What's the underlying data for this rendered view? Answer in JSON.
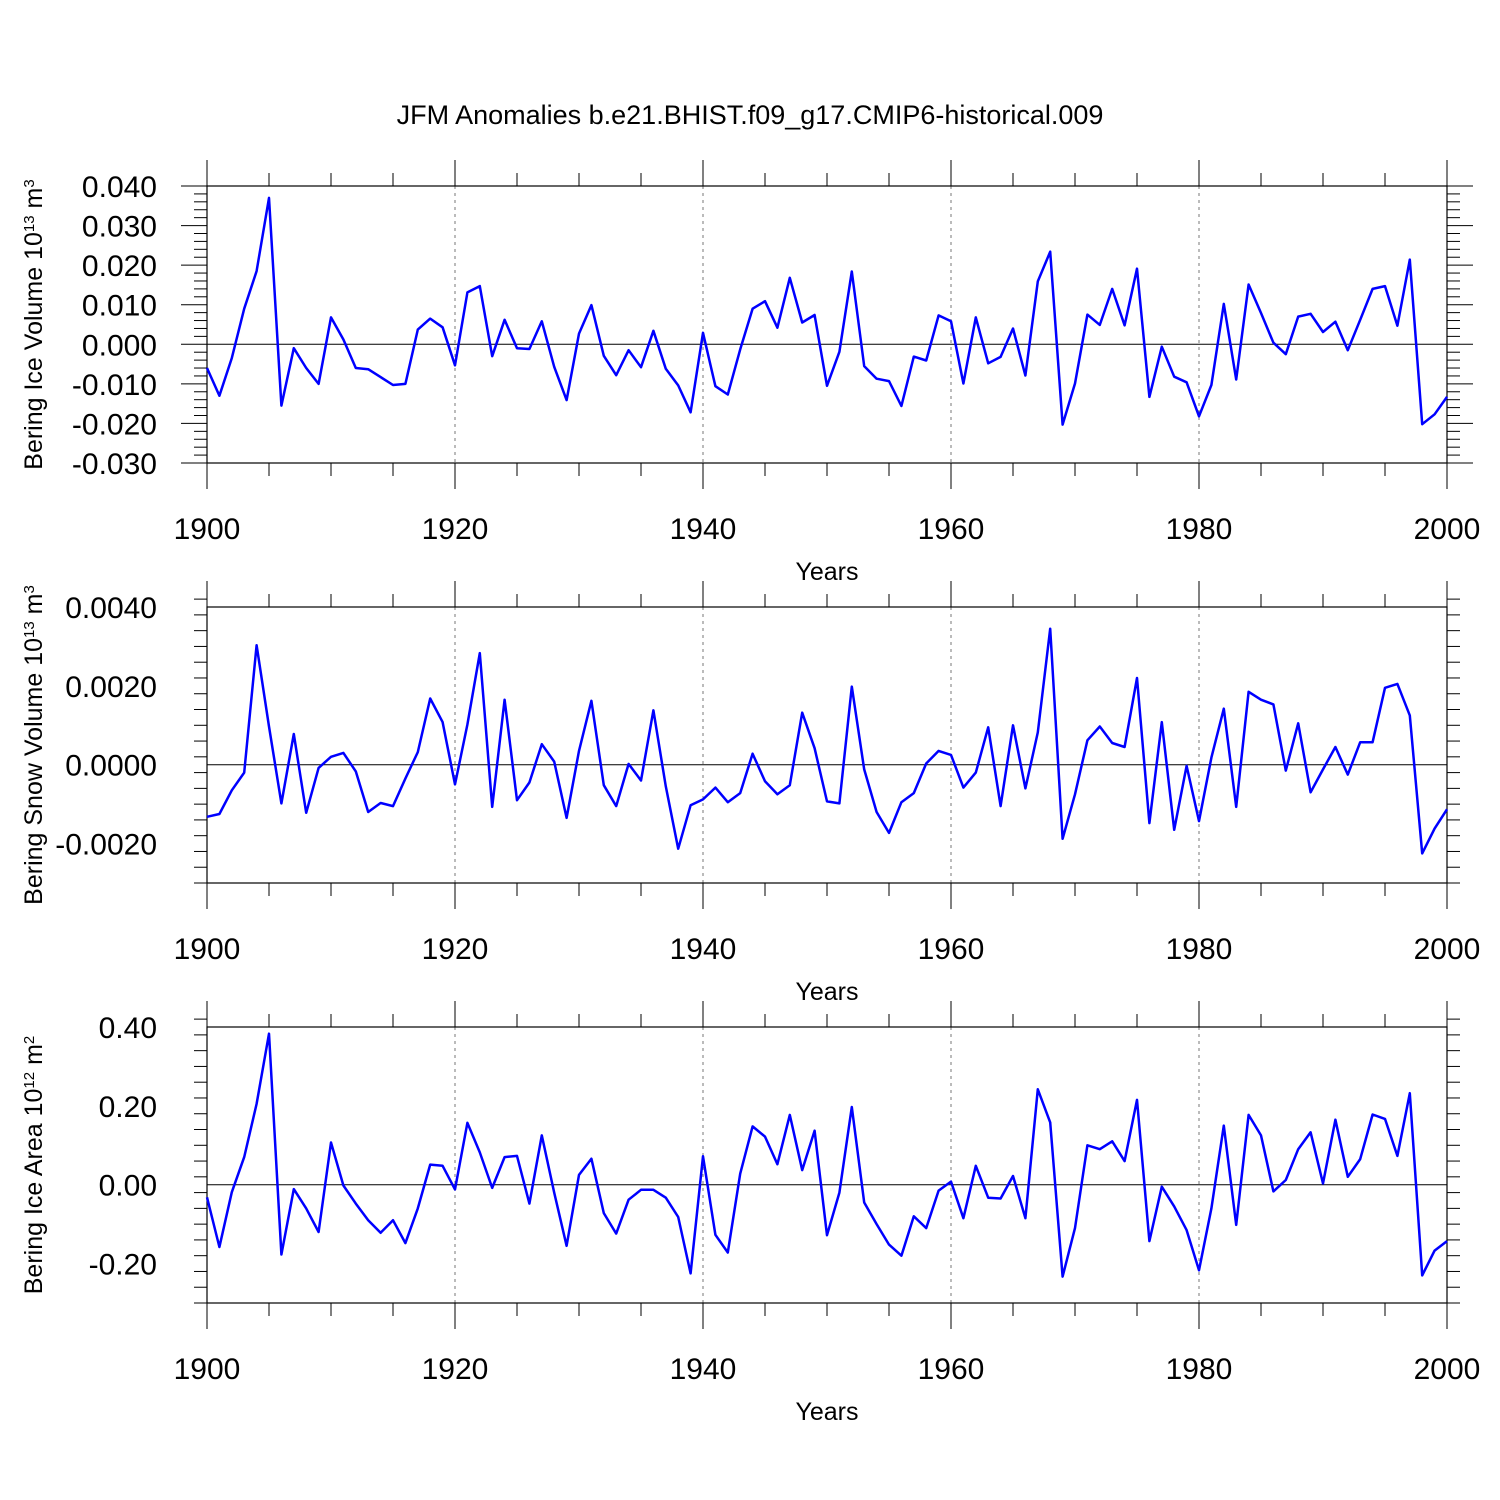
{
  "figure": {
    "title": "JFM Anomalies b.e21.BHIST.f09_g17.CMIP6-historical.009",
    "line_color": "#0000ff"
  },
  "chart_data": [
    {
      "type": "line",
      "ylabel_base": "Bering Ice Volume 10",
      "ylabel_exp": "13",
      "ylabel_unit": " m",
      "ylabel_unit_exp": "3",
      "xlabel": "Years",
      "xlim": [
        1900,
        2000
      ],
      "ylim": [
        -0.03,
        0.04
      ],
      "y_ticks": [
        0.04,
        0.03,
        0.02,
        0.01,
        0.0,
        -0.01,
        -0.02,
        -0.03
      ],
      "y_tick_labels": [
        "0.040",
        "0.030",
        "0.020",
        "0.010",
        "0.000",
        "-0.010",
        "-0.020",
        "-0.030"
      ],
      "x_ticks": [
        1900,
        1920,
        1940,
        1960,
        1980,
        2000
      ],
      "x_tick_labels": [
        "1900",
        "1920",
        "1940",
        "1960",
        "1980",
        "2000"
      ],
      "grid_x": [
        1920,
        1940,
        1960,
        1980
      ],
      "x": [
        1900,
        1901,
        1902,
        1903,
        1904,
        1905,
        1906,
        1907,
        1908,
        1909,
        1910,
        1911,
        1912,
        1913,
        1914,
        1915,
        1916,
        1917,
        1918,
        1919,
        1920,
        1921,
        1922,
        1923,
        1924,
        1925,
        1926,
        1927,
        1928,
        1929,
        1930,
        1931,
        1932,
        1933,
        1934,
        1935,
        1936,
        1937,
        1938,
        1939,
        1940,
        1941,
        1942,
        1943,
        1944,
        1945,
        1946,
        1947,
        1948,
        1949,
        1950,
        1951,
        1952,
        1953,
        1954,
        1955,
        1956,
        1957,
        1958,
        1959,
        1960,
        1961,
        1962,
        1963,
        1964,
        1965,
        1966,
        1967,
        1968,
        1969,
        1970,
        1971,
        1972,
        1973,
        1974,
        1975,
        1976,
        1977,
        1978,
        1979,
        1980,
        1981,
        1982,
        1983,
        1984,
        1985,
        1986,
        1987,
        1988,
        1989,
        1990,
        1991,
        1992,
        1993,
        1994,
        1995,
        1996,
        1997,
        1998,
        1999,
        2000
      ],
      "y": [
        -0.006,
        -0.013,
        -0.0035,
        0.009,
        0.0185,
        0.037,
        -0.0155,
        -0.001,
        -0.006,
        -0.01,
        0.0068,
        0.0012,
        -0.006,
        -0.0063,
        -0.0083,
        -0.0103,
        -0.01,
        0.0037,
        0.0065,
        0.0043,
        -0.0053,
        0.0131,
        0.0147,
        -0.003,
        0.0062,
        -0.001,
        -0.0012,
        0.0058,
        -0.0057,
        -0.0141,
        0.0027,
        0.0099,
        -0.0029,
        -0.0078,
        -0.0015,
        -0.0058,
        0.0034,
        -0.0062,
        -0.0104,
        -0.0172,
        0.0029,
        -0.0106,
        -0.0127,
        -0.0013,
        0.009,
        0.0109,
        0.0042,
        0.0168,
        0.0055,
        0.0074,
        -0.0105,
        -0.0019,
        0.0184,
        -0.0055,
        -0.0087,
        -0.0093,
        -0.0156,
        -0.0031,
        -0.0041,
        0.0073,
        0.0058,
        -0.0099,
        0.0068,
        -0.0048,
        -0.0032,
        0.004,
        -0.0079,
        0.0159,
        0.0234,
        -0.0203,
        -0.0099,
        0.0075,
        0.0049,
        0.014,
        0.0048,
        0.0191,
        -0.0133,
        -0.0006,
        -0.0082,
        -0.0096,
        -0.0182,
        -0.0103,
        0.0102,
        -0.0089,
        0.0151,
        0.0079,
        0.0004,
        -0.0025,
        0.007,
        0.0077,
        0.0031,
        0.0057,
        -0.0015,
        0.0062,
        0.014,
        0.0147,
        0.0047,
        0.0214,
        -0.0202,
        -0.0177,
        -0.0133
      ]
    },
    {
      "type": "line",
      "ylabel_base": "Bering Snow Volume 10",
      "ylabel_exp": "13",
      "ylabel_unit": " m",
      "ylabel_unit_exp": "3",
      "xlabel": "Years",
      "xlim": [
        1900,
        2000
      ],
      "ylim": [
        -0.003,
        0.004
      ],
      "y_ticks": [
        0.004,
        0.002,
        0.0,
        -0.002
      ],
      "y_tick_labels": [
        "0.0040",
        "0.0020",
        "0.0000",
        "-0.0020"
      ],
      "x_ticks": [
        1900,
        1920,
        1940,
        1960,
        1980,
        2000
      ],
      "x_tick_labels": [
        "1900",
        "1920",
        "1940",
        "1960",
        "1980",
        "2000"
      ],
      "grid_x": [
        1920,
        1940,
        1960,
        1980
      ],
      "x": [
        1900,
        1901,
        1902,
        1903,
        1904,
        1905,
        1906,
        1907,
        1908,
        1909,
        1910,
        1911,
        1912,
        1913,
        1914,
        1915,
        1916,
        1917,
        1918,
        1919,
        1920,
        1921,
        1922,
        1923,
        1924,
        1925,
        1926,
        1927,
        1928,
        1929,
        1930,
        1931,
        1932,
        1933,
        1934,
        1935,
        1936,
        1937,
        1938,
        1939,
        1940,
        1941,
        1942,
        1943,
        1944,
        1945,
        1946,
        1947,
        1948,
        1949,
        1950,
        1951,
        1952,
        1953,
        1954,
        1955,
        1956,
        1957,
        1958,
        1959,
        1960,
        1961,
        1962,
        1963,
        1964,
        1965,
        1966,
        1967,
        1968,
        1969,
        1970,
        1971,
        1972,
        1973,
        1974,
        1975,
        1976,
        1977,
        1978,
        1979,
        1980,
        1981,
        1982,
        1983,
        1984,
        1985,
        1986,
        1987,
        1988,
        1989,
        1990,
        1991,
        1992,
        1993,
        1994,
        1995,
        1996,
        1997,
        1998,
        1999,
        2000
      ],
      "y": [
        -0.00132,
        -0.00125,
        -0.00065,
        -0.0002,
        0.00303,
        0.00097,
        -0.00098,
        0.00078,
        -0.00122,
        -8e-05,
        0.0002,
        0.0003,
        -0.00017,
        -0.0012,
        -0.00097,
        -0.00105,
        -0.00035,
        0.00032,
        0.00168,
        0.00108,
        -0.0005,
        0.00102,
        0.00283,
        -0.00107,
        0.00165,
        -0.0009,
        -0.00045,
        0.00052,
        8e-05,
        -0.00135,
        0.00035,
        0.00162,
        -0.00052,
        -0.00105,
        2e-05,
        -0.0004,
        0.00138,
        -0.00055,
        -0.00213,
        -0.00103,
        -0.00088,
        -0.00058,
        -0.00095,
        -0.00072,
        0.00028,
        -0.00042,
        -0.00075,
        -0.00052,
        0.00132,
        0.00042,
        -0.00093,
        -0.00098,
        0.00198,
        -0.00012,
        -0.0012,
        -0.00173,
        -0.00095,
        -0.00072,
        3e-05,
        0.00035,
        0.00025,
        -0.00058,
        -0.0002,
        0.00095,
        -0.00105,
        0.001,
        -0.0006,
        0.00082,
        0.00345,
        -0.00188,
        -0.00075,
        0.00062,
        0.00097,
        0.00055,
        0.00045,
        0.0022,
        -0.00148,
        0.00108,
        -0.00165,
        -3e-05,
        -0.00143,
        0.00018,
        0.00142,
        -0.00107,
        0.00185,
        0.00165,
        0.00153,
        -0.00015,
        0.00105,
        -0.0007,
        -0.00012,
        0.00045,
        -0.00025,
        0.00057,
        0.00057,
        0.00195,
        0.00205,
        0.00125,
        -0.00225,
        -0.00162,
        -0.00113
      ]
    },
    {
      "type": "line",
      "ylabel_base": "Bering Ice Area 10",
      "ylabel_exp": "12",
      "ylabel_unit": " m",
      "ylabel_unit_exp": "2",
      "xlabel": "Years",
      "xlim": [
        1900,
        2000
      ],
      "ylim": [
        -0.3,
        0.4
      ],
      "y_ticks": [
        0.4,
        0.2,
        0.0,
        -0.2
      ],
      "y_tick_labels": [
        "0.40",
        "0.20",
        "0.00",
        "-0.20"
      ],
      "x_ticks": [
        1900,
        1920,
        1940,
        1960,
        1980,
        2000
      ],
      "x_tick_labels": [
        "1900",
        "1920",
        "1940",
        "1960",
        "1980",
        "2000"
      ],
      "grid_x": [
        1920,
        1940,
        1960,
        1980
      ],
      "x": [
        1900,
        1901,
        1902,
        1903,
        1904,
        1905,
        1906,
        1907,
        1908,
        1909,
        1910,
        1911,
        1912,
        1913,
        1914,
        1915,
        1916,
        1917,
        1918,
        1919,
        1920,
        1921,
        1922,
        1923,
        1924,
        1925,
        1926,
        1927,
        1928,
        1929,
        1930,
        1931,
        1932,
        1933,
        1934,
        1935,
        1936,
        1937,
        1938,
        1939,
        1940,
        1941,
        1942,
        1943,
        1944,
        1945,
        1946,
        1947,
        1948,
        1949,
        1950,
        1951,
        1952,
        1953,
        1954,
        1955,
        1956,
        1957,
        1958,
        1959,
        1960,
        1961,
        1962,
        1963,
        1964,
        1965,
        1966,
        1967,
        1968,
        1969,
        1970,
        1971,
        1972,
        1973,
        1974,
        1975,
        1976,
        1977,
        1978,
        1979,
        1980,
        1981,
        1982,
        1983,
        1984,
        1985,
        1986,
        1987,
        1988,
        1989,
        1990,
        1991,
        1992,
        1993,
        1994,
        1995,
        1996,
        1997,
        1998,
        1999,
        2000
      ],
      "y": [
        -0.032,
        -0.158,
        -0.019,
        0.07,
        0.205,
        0.383,
        -0.177,
        -0.011,
        -0.06,
        -0.12,
        0.107,
        -0.002,
        -0.048,
        -0.09,
        -0.122,
        -0.09,
        -0.148,
        -0.06,
        0.051,
        0.048,
        -0.012,
        0.157,
        0.082,
        -0.008,
        0.07,
        0.073,
        -0.048,
        0.125,
        -0.02,
        -0.155,
        0.025,
        0.066,
        -0.072,
        -0.124,
        -0.038,
        -0.013,
        -0.013,
        -0.033,
        -0.082,
        -0.225,
        0.072,
        -0.127,
        -0.172,
        0.028,
        0.148,
        0.122,
        0.052,
        0.177,
        0.037,
        0.137,
        -0.128,
        -0.02,
        0.197,
        -0.045,
        -0.1,
        -0.152,
        -0.18,
        -0.08,
        -0.11,
        -0.015,
        0.008,
        -0.085,
        0.048,
        -0.033,
        -0.035,
        0.022,
        -0.085,
        0.242,
        0.158,
        -0.233,
        -0.11,
        0.1,
        0.09,
        0.11,
        0.06,
        0.215,
        -0.143,
        -0.005,
        -0.055,
        -0.115,
        -0.217,
        -0.06,
        0.15,
        -0.102,
        0.177,
        0.125,
        -0.017,
        0.012,
        0.09,
        0.133,
        0.003,
        0.165,
        0.02,
        0.065,
        0.178,
        0.167,
        0.073,
        0.232,
        -0.23,
        -0.167,
        -0.143
      ]
    }
  ]
}
